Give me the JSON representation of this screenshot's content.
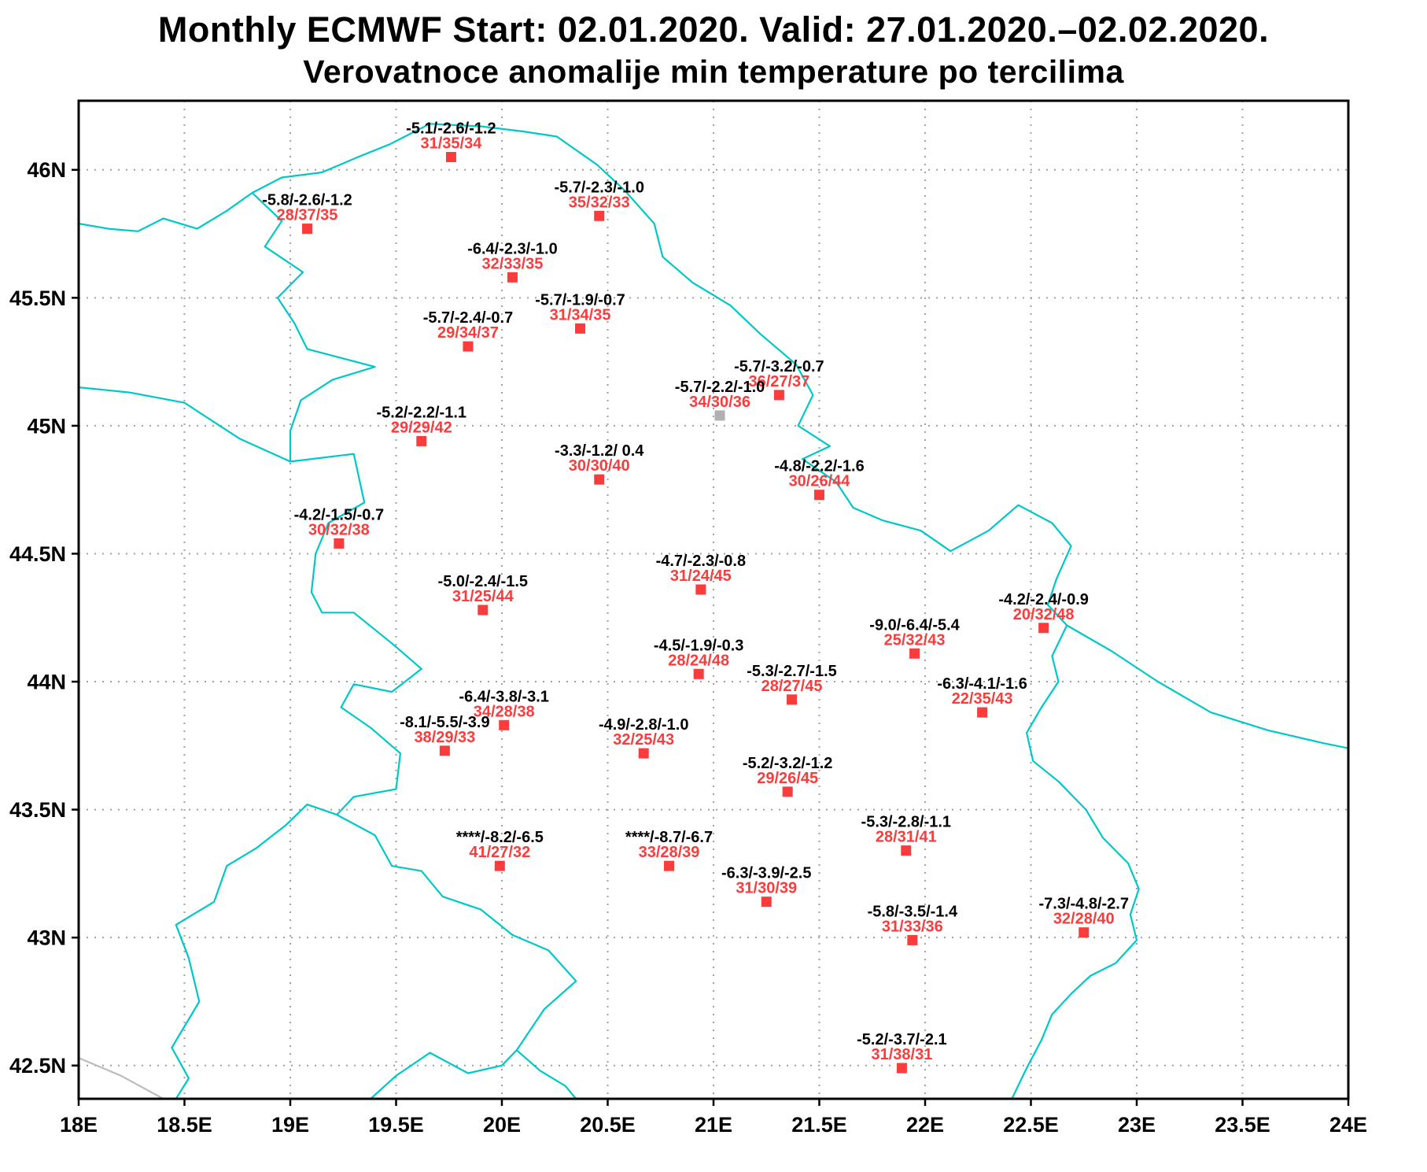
{
  "title": {
    "line1": "Monthly ECMWF Start: 02.01.2020. Valid: 27.01.2020.–02.02.2020.",
    "line2": "Verovatnoce anomalije min temperature po tercilima"
  },
  "colors": {
    "border": "#00c8c8",
    "coast": "#bcbcbc",
    "grid": "#a0a0a0",
    "frame": "#000000",
    "station": "#fa3c3c",
    "station_missing": "#b0b0b0",
    "text_black": "#000000",
    "text_red": "#fa3c3c"
  },
  "axes": {
    "lon_ticks": [
      {
        "value": 18,
        "label": "18E"
      },
      {
        "value": 18.5,
        "label": "18.5E"
      },
      {
        "value": 19,
        "label": "19E"
      },
      {
        "value": 19.5,
        "label": "19.5E"
      },
      {
        "value": 20,
        "label": "20E"
      },
      {
        "value": 20.5,
        "label": "20.5E"
      },
      {
        "value": 21,
        "label": "21E"
      },
      {
        "value": 21.5,
        "label": "21.5E"
      },
      {
        "value": 22,
        "label": "22E"
      },
      {
        "value": 22.5,
        "label": "22.5E"
      },
      {
        "value": 23,
        "label": "23E"
      },
      {
        "value": 23.5,
        "label": "23.5E"
      },
      {
        "value": 24,
        "label": "24E"
      }
    ],
    "lat_ticks": [
      {
        "value": 46,
        "label": "46N"
      },
      {
        "value": 45.5,
        "label": "45.5N"
      },
      {
        "value": 45,
        "label": "45N"
      },
      {
        "value": 44.5,
        "label": "44.5N"
      },
      {
        "value": 44,
        "label": "44N"
      },
      {
        "value": 43.5,
        "label": "43.5N"
      },
      {
        "value": 43,
        "label": "43N"
      },
      {
        "value": 42.5,
        "label": "42.5N"
      }
    ]
  },
  "map": {
    "lon_min": 18,
    "lon_max": 24,
    "lat_min": 42.37,
    "lat_max": 46.27,
    "borders": [
      {
        "name": "serbia-border",
        "color": "cyan",
        "points": [
          [
            22.41,
            42.37
          ],
          [
            22.48,
            42.49
          ],
          [
            22.55,
            42.6
          ],
          [
            22.6,
            42.7
          ],
          [
            22.69,
            42.78
          ],
          [
            22.78,
            42.85
          ],
          [
            22.9,
            42.9
          ],
          [
            23.0,
            42.99
          ],
          [
            22.97,
            43.09
          ],
          [
            23.01,
            43.19
          ],
          [
            22.96,
            43.29
          ],
          [
            22.84,
            43.39
          ],
          [
            22.76,
            43.5
          ],
          [
            22.63,
            43.61
          ],
          [
            22.51,
            43.69
          ],
          [
            22.48,
            43.8
          ],
          [
            22.55,
            43.9
          ],
          [
            22.63,
            44.0
          ],
          [
            22.6,
            44.1
          ],
          [
            22.67,
            44.22
          ],
          [
            22.58,
            44.3
          ],
          [
            22.62,
            44.4
          ],
          [
            22.69,
            44.53
          ],
          [
            22.6,
            44.62
          ],
          [
            22.44,
            44.69
          ],
          [
            22.3,
            44.59
          ],
          [
            22.12,
            44.51
          ],
          [
            21.98,
            44.59
          ],
          [
            21.8,
            44.63
          ],
          [
            21.66,
            44.68
          ],
          [
            21.58,
            44.78
          ],
          [
            21.42,
            44.87
          ],
          [
            21.55,
            44.92
          ],
          [
            21.4,
            45.0
          ],
          [
            21.47,
            45.12
          ],
          [
            21.39,
            45.24
          ],
          [
            21.22,
            45.36
          ],
          [
            21.08,
            45.47
          ],
          [
            20.9,
            45.56
          ],
          [
            20.76,
            45.66
          ],
          [
            20.72,
            45.79
          ],
          [
            20.58,
            45.92
          ],
          [
            20.45,
            46.02
          ],
          [
            20.26,
            46.13
          ],
          [
            20.1,
            46.15
          ],
          [
            19.9,
            46.17
          ],
          [
            19.66,
            46.18
          ],
          [
            19.47,
            46.1
          ],
          [
            19.32,
            46.05
          ],
          [
            19.15,
            45.99
          ],
          [
            18.96,
            45.97
          ],
          [
            18.82,
            45.91
          ],
          [
            18.96,
            45.8
          ],
          [
            18.88,
            45.7
          ],
          [
            19.06,
            45.6
          ],
          [
            18.94,
            45.5
          ],
          [
            19.02,
            45.4
          ],
          [
            19.08,
            45.3
          ],
          [
            19.4,
            45.23
          ],
          [
            19.2,
            45.18
          ],
          [
            19.05,
            45.1
          ],
          [
            19.0,
            44.98
          ],
          [
            19.0,
            44.86
          ],
          [
            19.3,
            44.89
          ],
          [
            19.35,
            44.7
          ],
          [
            19.18,
            44.62
          ],
          [
            19.12,
            44.5
          ],
          [
            19.1,
            44.35
          ],
          [
            19.15,
            44.27
          ],
          [
            19.3,
            44.27
          ],
          [
            19.48,
            44.15
          ],
          [
            19.62,
            44.05
          ],
          [
            19.48,
            43.96
          ],
          [
            19.3,
            43.99
          ],
          [
            19.24,
            43.9
          ],
          [
            19.38,
            43.82
          ],
          [
            19.52,
            43.72
          ],
          [
            19.5,
            43.58
          ],
          [
            19.3,
            43.55
          ],
          [
            19.22,
            43.48
          ],
          [
            19.4,
            43.4
          ],
          [
            19.48,
            43.28
          ],
          [
            19.62,
            43.26
          ],
          [
            19.72,
            43.16
          ],
          [
            19.9,
            43.11
          ],
          [
            20.05,
            43.01
          ],
          [
            20.22,
            42.95
          ],
          [
            20.35,
            42.83
          ],
          [
            20.2,
            42.72
          ],
          [
            20.07,
            42.56
          ],
          [
            20.18,
            42.48
          ],
          [
            20.3,
            42.42
          ],
          [
            20.35,
            42.37
          ]
        ]
      },
      {
        "name": "hungary-croatia-border",
        "color": "cyan",
        "points": [
          [
            18.0,
            45.79
          ],
          [
            18.14,
            45.77
          ],
          [
            18.28,
            45.76
          ],
          [
            18.4,
            45.81
          ],
          [
            18.56,
            45.77
          ],
          [
            18.7,
            45.84
          ],
          [
            18.82,
            45.91
          ]
        ]
      },
      {
        "name": "bosnia-croatia-border",
        "color": "cyan",
        "points": [
          [
            18.0,
            45.15
          ],
          [
            18.24,
            45.13
          ],
          [
            18.5,
            45.09
          ],
          [
            18.76,
            44.95
          ],
          [
            19.0,
            44.86
          ]
        ]
      },
      {
        "name": "bosnia-montenegro-border",
        "color": "cyan",
        "points": [
          [
            19.22,
            43.48
          ],
          [
            19.08,
            43.52
          ],
          [
            18.98,
            43.44
          ],
          [
            18.84,
            43.35
          ],
          [
            18.7,
            43.28
          ],
          [
            18.64,
            43.14
          ],
          [
            18.46,
            43.05
          ],
          [
            18.52,
            42.92
          ],
          [
            18.57,
            42.75
          ],
          [
            18.44,
            42.57
          ],
          [
            18.52,
            42.45
          ],
          [
            18.46,
            42.37
          ]
        ]
      },
      {
        "name": "montenegro-albania-border",
        "color": "cyan",
        "points": [
          [
            19.38,
            42.37
          ],
          [
            19.5,
            42.46
          ],
          [
            19.66,
            42.55
          ],
          [
            19.84,
            42.47
          ],
          [
            20.0,
            42.5
          ],
          [
            20.07,
            42.56
          ]
        ]
      },
      {
        "name": "romania-bulgaria-danube",
        "color": "cyan",
        "points": [
          [
            22.67,
            44.22
          ],
          [
            22.88,
            44.12
          ],
          [
            23.1,
            44.0
          ],
          [
            23.35,
            43.88
          ],
          [
            23.62,
            43.81
          ],
          [
            23.88,
            43.76
          ],
          [
            24.0,
            43.74
          ]
        ]
      },
      {
        "name": "adriatic-coastline",
        "color": "gray",
        "points": [
          [
            18.0,
            42.53
          ],
          [
            18.2,
            42.46
          ],
          [
            18.4,
            42.37
          ]
        ]
      }
    ],
    "stations": [
      {
        "lon": 19.76,
        "lat": 46.05,
        "anomaly": "-5.1/-2.6/-1.2",
        "probability": "31/35/34",
        "marker": "red"
      },
      {
        "lon": 19.08,
        "lat": 45.77,
        "anomaly": "-5.8/-2.6/-1.2",
        "probability": "28/37/35",
        "marker": "red"
      },
      {
        "lon": 20.46,
        "lat": 45.82,
        "anomaly": "-5.7/-2.3/-1.0",
        "probability": "35/32/33",
        "marker": "red"
      },
      {
        "lon": 20.05,
        "lat": 45.58,
        "anomaly": "-6.4/-2.3/-1.0",
        "probability": "32/33/35",
        "marker": "red"
      },
      {
        "lon": 20.37,
        "lat": 45.38,
        "anomaly": "-5.7/-1.9/-0.7",
        "probability": "31/34/35",
        "marker": "red"
      },
      {
        "lon": 19.84,
        "lat": 45.31,
        "anomaly": "-5.7/-2.4/-0.7",
        "probability": "29/34/37",
        "marker": "red"
      },
      {
        "lon": 21.31,
        "lat": 45.12,
        "anomaly": "-5.7/-3.2/-0.7",
        "probability": "36/27/37",
        "marker": "red"
      },
      {
        "lon": 21.03,
        "lat": 45.04,
        "anomaly": "-5.7/-2.2/-1.0",
        "probability": "34/30/36",
        "marker": "gray"
      },
      {
        "lon": 19.62,
        "lat": 44.94,
        "anomaly": "-5.2/-2.2/-1.1",
        "probability": "29/29/42",
        "marker": "red"
      },
      {
        "lon": 20.46,
        "lat": 44.79,
        "anomaly": "-3.3/-1.2/ 0.4",
        "probability": "30/30/40",
        "marker": "red"
      },
      {
        "lon": 21.5,
        "lat": 44.73,
        "anomaly": "-4.8/-2.2/-1.6",
        "probability": "30/26/44",
        "marker": "red"
      },
      {
        "lon": 19.23,
        "lat": 44.54,
        "anomaly": "-4.2/-1.5/-0.7",
        "probability": "30/32/38",
        "marker": "red"
      },
      {
        "lon": 19.91,
        "lat": 44.28,
        "anomaly": "-5.0/-2.4/-1.5",
        "probability": "31/25/44",
        "marker": "red"
      },
      {
        "lon": 20.94,
        "lat": 44.36,
        "anomaly": "-4.7/-2.3/-0.8",
        "probability": "31/24/45",
        "marker": "red"
      },
      {
        "lon": 22.56,
        "lat": 44.21,
        "anomaly": "-4.2/-2.4/-0.9",
        "probability": "20/32/48",
        "marker": "red"
      },
      {
        "lon": 21.95,
        "lat": 44.11,
        "anomaly": "-9.0/-6.4/-5.4",
        "probability": "25/32/43",
        "marker": "red"
      },
      {
        "lon": 20.93,
        "lat": 44.03,
        "anomaly": "-4.5/-1.9/-0.3",
        "probability": "28/24/48",
        "marker": "red"
      },
      {
        "lon": 21.37,
        "lat": 43.93,
        "anomaly": "-5.3/-2.7/-1.5",
        "probability": "28/27/45",
        "marker": "red"
      },
      {
        "lon": 22.27,
        "lat": 43.88,
        "anomaly": "-6.3/-4.1/-1.6",
        "probability": "22/35/43",
        "marker": "red"
      },
      {
        "lon": 20.01,
        "lat": 43.83,
        "anomaly": "-6.4/-3.8/-3.1",
        "probability": "34/28/38",
        "marker": "red"
      },
      {
        "lon": 19.73,
        "lat": 43.73,
        "anomaly": "-8.1/-5.5/-3.9",
        "probability": "38/29/33",
        "marker": "red"
      },
      {
        "lon": 20.67,
        "lat": 43.72,
        "anomaly": "-4.9/-2.8/-1.0",
        "probability": "32/25/43",
        "marker": "red"
      },
      {
        "lon": 21.35,
        "lat": 43.57,
        "anomaly": "-5.2/-3.2/-1.2",
        "probability": "29/26/45",
        "marker": "red"
      },
      {
        "lon": 19.99,
        "lat": 43.28,
        "anomaly": "****/-8.2/-6.5",
        "probability": "41/27/32",
        "marker": "red"
      },
      {
        "lon": 20.79,
        "lat": 43.28,
        "anomaly": "****/-8.7/-6.7",
        "probability": "33/28/39",
        "marker": "red"
      },
      {
        "lon": 21.25,
        "lat": 43.14,
        "anomaly": "-6.3/-3.9/-2.5",
        "probability": "31/30/39",
        "marker": "red"
      },
      {
        "lon": 21.91,
        "lat": 43.34,
        "anomaly": "-5.3/-2.8/-1.1",
        "probability": "28/31/41",
        "marker": "red"
      },
      {
        "lon": 21.94,
        "lat": 42.99,
        "anomaly": "-5.8/-3.5/-1.4",
        "probability": "31/33/36",
        "marker": "red"
      },
      {
        "lon": 22.75,
        "lat": 43.02,
        "anomaly": "-7.3/-4.8/-2.7",
        "probability": "32/28/40",
        "marker": "red"
      },
      {
        "lon": 21.89,
        "lat": 42.49,
        "anomaly": "-5.2/-3.7/-2.1",
        "probability": "31/38/31",
        "marker": "red"
      }
    ]
  }
}
